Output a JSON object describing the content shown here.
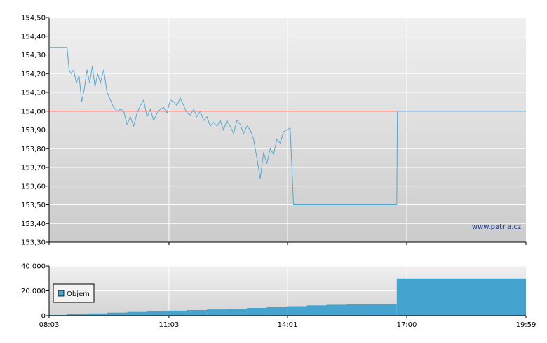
{
  "watermark": "www.patria.cz",
  "colors": {
    "price_line": "#56a7d1",
    "reference_line": "#e03a3a",
    "volume_bar": "#45a4cf",
    "grid": "#ffffff",
    "plot_bg_top": "#f0f0f0",
    "plot_bg_bottom": "#cbcbcb"
  },
  "chart_data": [
    {
      "type": "line",
      "title": "",
      "xlabel": "",
      "ylabel": "",
      "ylim": [
        153.3,
        154.5
      ],
      "y_ticks": [
        "153,30",
        "153,40",
        "153,50",
        "153,60",
        "153,70",
        "153,80",
        "153,90",
        "154,00",
        "154,10",
        "154,20",
        "154,30",
        "154,40",
        "154,50"
      ],
      "xlim": [
        "08:03",
        "19:59"
      ],
      "x_ticks": [
        "11:03",
        "14:01",
        "17:00"
      ],
      "grid": true,
      "reference_line": 154.0,
      "series": [
        {
          "x": [
            "08:03",
            "08:30",
            "08:33",
            "08:36",
            "08:40",
            "08:44",
            "08:48",
            "08:52",
            "08:56",
            "09:00",
            "09:04",
            "09:08",
            "09:12",
            "09:16",
            "09:20",
            "09:25",
            "09:30",
            "09:35",
            "09:40",
            "09:45",
            "09:50",
            "09:55",
            "10:00",
            "10:05",
            "10:10",
            "10:15",
            "10:20",
            "10:25",
            "10:30",
            "10:35",
            "10:40",
            "10:45",
            "10:50",
            "10:55",
            "11:00",
            "11:05",
            "11:10",
            "11:15",
            "11:20",
            "11:25",
            "11:30",
            "11:35",
            "11:40",
            "11:45",
            "11:50",
            "11:55",
            "12:00",
            "12:05",
            "12:10",
            "12:15",
            "12:20",
            "12:25",
            "12:30",
            "12:35",
            "12:40",
            "12:45",
            "12:50",
            "12:55",
            "13:00",
            "13:05",
            "13:10",
            "13:15",
            "13:20",
            "13:25",
            "13:30",
            "13:35",
            "13:40",
            "13:45",
            "13:50",
            "13:55",
            "14:00",
            "14:05",
            "14:10",
            "14:15",
            "14:20",
            "14:23",
            "14:26",
            "14:29",
            "14:32",
            "14:35",
            "14:38",
            "14:40",
            "14:42",
            "14:44",
            "14:46",
            "14:48",
            "14:50",
            "14:52",
            "14:54",
            "14:56",
            "14:57",
            "14:58",
            "16:45",
            "16:46",
            "19:59"
          ],
          "y": [
            154.34,
            154.34,
            154.22,
            154.2,
            154.22,
            154.15,
            154.19,
            154.05,
            154.12,
            154.22,
            154.15,
            154.24,
            154.13,
            154.2,
            154.15,
            154.22,
            154.1,
            154.06,
            154.02,
            154.0,
            154.01,
            154.0,
            153.93,
            153.97,
            153.92,
            153.99,
            154.03,
            154.06,
            153.97,
            154.01,
            153.95,
            153.99,
            154.01,
            154.02,
            153.99,
            154.06,
            154.05,
            154.03,
            154.07,
            154.03,
            153.99,
            153.98,
            154.01,
            153.97,
            154.0,
            153.95,
            153.97,
            153.92,
            153.94,
            153.92,
            153.95,
            153.9,
            153.95,
            153.92,
            153.88,
            153.95,
            153.93,
            153.88,
            153.92,
            153.9,
            153.85,
            153.75,
            153.64,
            153.78,
            153.72,
            153.8,
            153.77,
            153.85,
            153.83,
            153.89,
            153.9,
            153.91,
            153.5,
            153.5,
            153.5,
            153.5,
            153.5,
            153.5,
            153.5,
            153.5,
            153.5,
            153.5,
            153.5,
            153.5,
            153.5,
            153.5,
            153.5,
            153.5,
            153.5,
            153.5,
            153.5,
            153.5,
            153.5,
            154.0,
            154.0
          ]
        }
      ]
    },
    {
      "type": "bar",
      "title": "",
      "xlabel": "",
      "ylabel": "",
      "ylim": [
        0,
        40000
      ],
      "y_ticks": [
        "0",
        "20 000",
        "40 000"
      ],
      "xlim": [
        "08:03",
        "19:59"
      ],
      "x_ticks": [
        "08:03",
        "11:03",
        "14:01",
        "17:00",
        "19:59"
      ],
      "grid": true,
      "legend": {
        "position": "left",
        "entries": [
          "Objem"
        ]
      },
      "series": [
        {
          "name": "Objem",
          "x": [
            "08:03",
            "08:30",
            "09:00",
            "09:30",
            "10:00",
            "10:30",
            "11:00",
            "11:30",
            "12:00",
            "12:30",
            "13:00",
            "13:30",
            "14:00",
            "14:30",
            "15:00",
            "15:30",
            "16:00",
            "16:30",
            "16:45",
            "17:00",
            "17:30",
            "18:00",
            "18:30",
            "19:00",
            "19:30",
            "19:59"
          ],
          "values": [
            500,
            1200,
            1800,
            2400,
            3000,
            3500,
            4000,
            4500,
            5000,
            5600,
            6200,
            6800,
            7600,
            8300,
            8800,
            9000,
            9100,
            9200,
            30000,
            30000,
            30000,
            30000,
            30000,
            30000,
            30000,
            30000
          ]
        }
      ]
    }
  ]
}
